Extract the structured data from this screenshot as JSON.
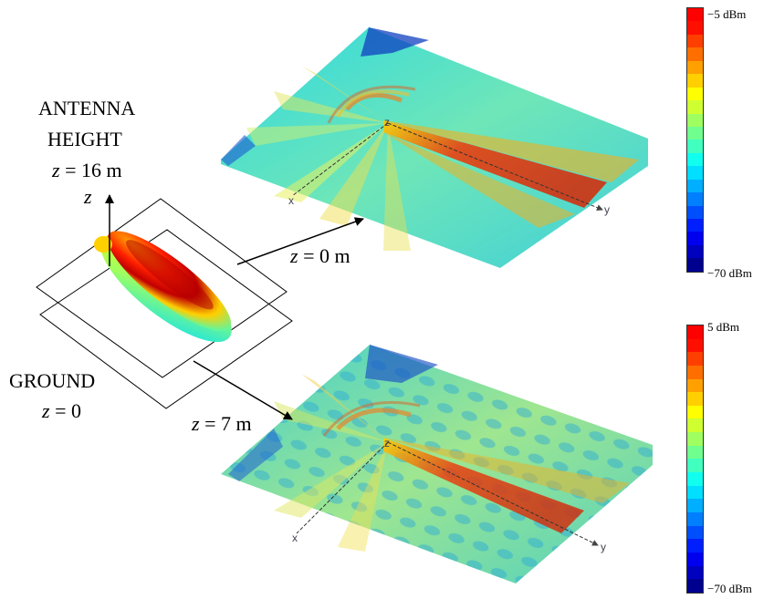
{
  "labels": {
    "antenna": "ANTENNA",
    "height": "HEIGHT",
    "z_var": "z",
    "eq_16": "= 16 m",
    "axis_z": "z",
    "ground": "GROUND",
    "eq_0": "= 0",
    "eq_0m": "= 0 m",
    "eq_7m": "= 7 m"
  },
  "plot_axes": {
    "x": "x",
    "y": "y",
    "z": "z"
  },
  "colorbar_top": {
    "max_label": "−5 dBm",
    "min_label": "−70 dBm"
  },
  "colorbar_bottom": {
    "max_label": "5 dBm",
    "min_label": "−70 dBm"
  },
  "colors": {
    "jet": [
      "#00008f",
      "#0000bf",
      "#0000ef",
      "#001fff",
      "#004fff",
      "#007fff",
      "#00afff",
      "#00dfff",
      "#10ffef",
      "#40ffbf",
      "#70ff8f",
      "#9fff60",
      "#cfff30",
      "#ffff00",
      "#ffcf00",
      "#ff9f00",
      "#ff6f00",
      "#ff3f00",
      "#ff0f00",
      "#ff0000"
    ]
  }
}
